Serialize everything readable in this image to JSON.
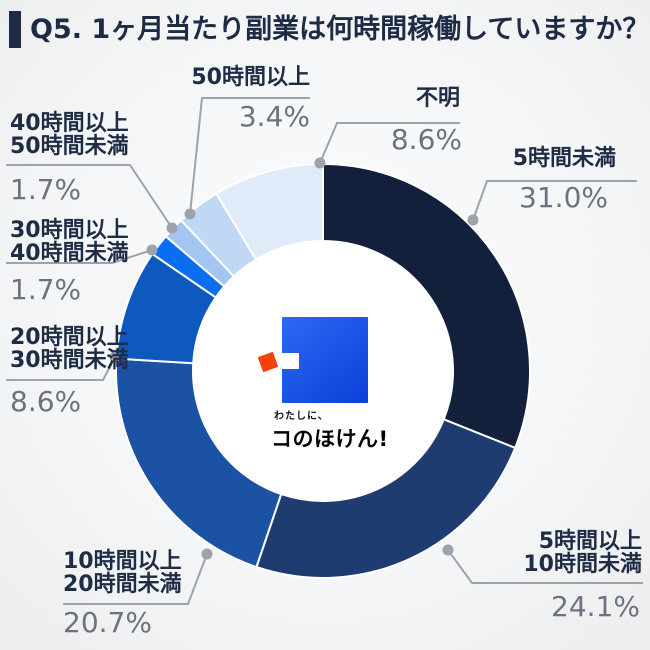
{
  "title": {
    "text": "Q5. 1ヶ月当たり副業は何時間稼働していますか？"
  },
  "chart_data": {
    "type": "pie",
    "subtype": "donut",
    "title": "Q5. 1ヶ月当たり副業は何時間稼働していますか？",
    "categories": [
      "5時間未満",
      "5時間以上10時間未満",
      "10時間以上20時間未満",
      "20時間以上30時間未満",
      "30時間以上40時間未満",
      "40時間以上50時間未満",
      "50時間以上",
      "不明"
    ],
    "values": [
      31.0,
      24.1,
      20.7,
      8.6,
      1.7,
      1.7,
      3.4,
      8.6
    ],
    "unit": "%",
    "colors": [
      "#12203C",
      "#1E3C70",
      "#1C52A4",
      "#0E59BD",
      "#0B6EF0",
      "#A3C5F1",
      "#C1D8F5",
      "#DFEBF9"
    ],
    "start_angle_deg": 0,
    "direction": "clockwise",
    "labels_position": "outside-callouts",
    "legend": false
  },
  "callouts": [
    {
      "id": "under5",
      "lines": [
        "5時間未満"
      ],
      "pct": "31.0%"
    },
    {
      "id": "5to10",
      "lines": [
        "5時間以上",
        "10時間未満"
      ],
      "pct": "24.1%"
    },
    {
      "id": "10to20",
      "lines": [
        "10時間以上",
        "20時間未満"
      ],
      "pct": "20.7%"
    },
    {
      "id": "20to30",
      "lines": [
        "20時間以上",
        "30時間未満"
      ],
      "pct": "8.6%"
    },
    {
      "id": "30to40",
      "lines": [
        "30時間以上",
        "40時間未満"
      ],
      "pct": "1.7%"
    },
    {
      "id": "40to50",
      "lines": [
        "40時間以上",
        "50時間未満"
      ],
      "pct": "1.7%"
    },
    {
      "id": "50plus",
      "lines": [
        "50時間以上"
      ],
      "pct": "3.4%"
    },
    {
      "id": "unknown",
      "lines": [
        "不明"
      ],
      "pct": "8.6%"
    }
  ],
  "logo": {
    "tagline": "わたしに、",
    "name": "コのほけん!",
    "square_color_top": "#2E68F4",
    "square_color_bottom": "#0A40D8",
    "accent_color": "#F4400D"
  },
  "style": {
    "title_color": "#1E2B45",
    "label_color": "#1F2C45",
    "pct_color": "#6B7280",
    "leader_line_color": "#9DA3AC",
    "separator_color": "#FFFFFF",
    "inner_circle_color": "#FFFFFF"
  }
}
